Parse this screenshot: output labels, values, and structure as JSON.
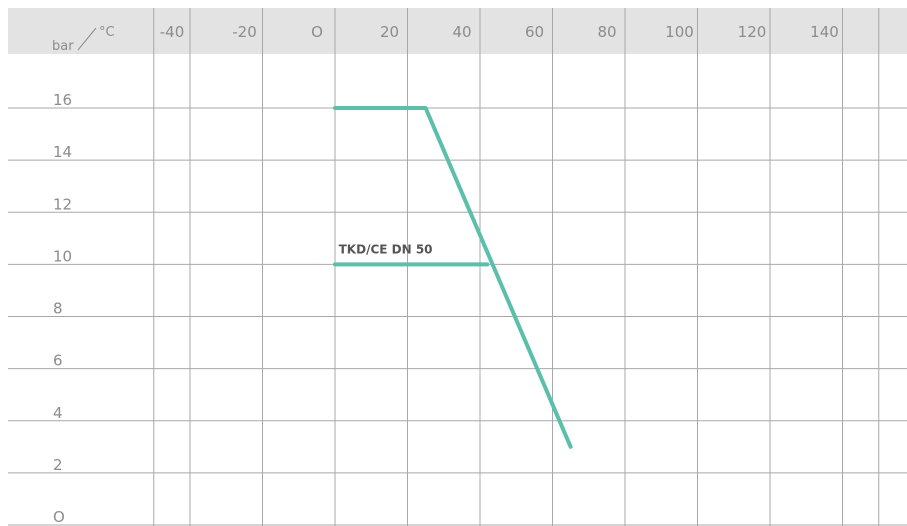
{
  "chart_data": {
    "type": "line",
    "title": "",
    "x_unit": "°C",
    "y_unit": "bar",
    "x_ticks": [
      "-40",
      "-20",
      "O",
      "20",
      "40",
      "60",
      "80",
      "100",
      "120",
      "140"
    ],
    "y_ticks": [
      "16",
      "14",
      "12",
      "10",
      "8",
      "6",
      "4",
      "2",
      "O"
    ],
    "xlim": [
      -50,
      150
    ],
    "ylim": [
      0,
      16
    ],
    "grid": true,
    "series": [
      {
        "name": "TKD/CE DN 50",
        "points": [
          {
            "x": 0,
            "y": 16
          },
          {
            "x": 25,
            "y": 16
          },
          {
            "x": 65,
            "y": 3
          }
        ]
      },
      {
        "name": "",
        "points": [
          {
            "x": 0,
            "y": 10
          },
          {
            "x": 42,
            "y": 10
          }
        ]
      }
    ],
    "colors": {
      "line": "#5bbfa9",
      "grid": "#a8a8a8",
      "header": "#e3e3e3",
      "text": "#8c8c8c"
    }
  }
}
